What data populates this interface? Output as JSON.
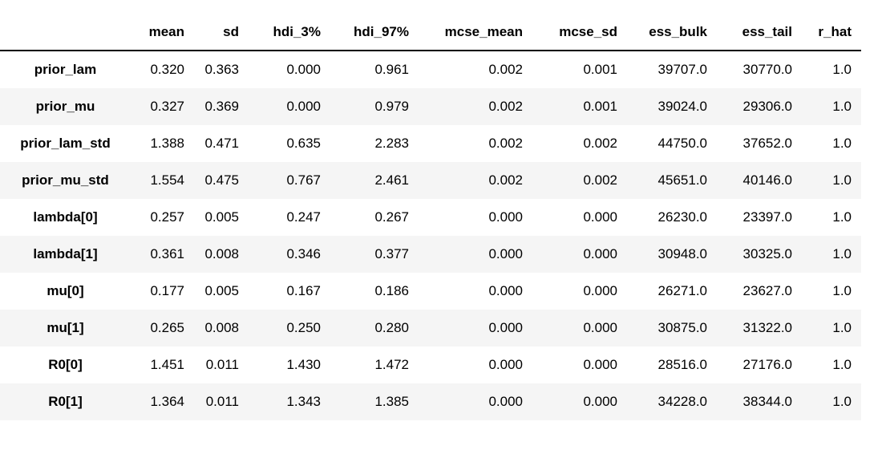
{
  "chart_data": {
    "type": "table",
    "description": "Bayesian posterior summary statistics table (ArviZ-style summary output)",
    "corner_header": "",
    "columns": [
      "mean",
      "sd",
      "hdi_3%",
      "hdi_97%",
      "mcse_mean",
      "mcse_sd",
      "ess_bulk",
      "ess_tail",
      "r_hat"
    ],
    "rows": [
      {
        "label": "prior_lam",
        "values": [
          "0.320",
          "0.363",
          "0.000",
          "0.961",
          "0.002",
          "0.001",
          "39707.0",
          "30770.0",
          "1.0"
        ]
      },
      {
        "label": "prior_mu",
        "values": [
          "0.327",
          "0.369",
          "0.000",
          "0.979",
          "0.002",
          "0.001",
          "39024.0",
          "29306.0",
          "1.0"
        ]
      },
      {
        "label": "prior_lam_std",
        "values": [
          "1.388",
          "0.471",
          "0.635",
          "2.283",
          "0.002",
          "0.002",
          "44750.0",
          "37652.0",
          "1.0"
        ]
      },
      {
        "label": "prior_mu_std",
        "values": [
          "1.554",
          "0.475",
          "0.767",
          "2.461",
          "0.002",
          "0.002",
          "45651.0",
          "40146.0",
          "1.0"
        ]
      },
      {
        "label": "lambda[0]",
        "values": [
          "0.257",
          "0.005",
          "0.247",
          "0.267",
          "0.000",
          "0.000",
          "26230.0",
          "23397.0",
          "1.0"
        ]
      },
      {
        "label": "lambda[1]",
        "values": [
          "0.361",
          "0.008",
          "0.346",
          "0.377",
          "0.000",
          "0.000",
          "30948.0",
          "30325.0",
          "1.0"
        ]
      },
      {
        "label": "mu[0]",
        "values": [
          "0.177",
          "0.005",
          "0.167",
          "0.186",
          "0.000",
          "0.000",
          "26271.0",
          "23627.0",
          "1.0"
        ]
      },
      {
        "label": "mu[1]",
        "values": [
          "0.265",
          "0.008",
          "0.250",
          "0.280",
          "0.000",
          "0.000",
          "30875.0",
          "31322.0",
          "1.0"
        ]
      },
      {
        "label": "R0[0]",
        "values": [
          "1.451",
          "0.011",
          "1.430",
          "1.472",
          "0.000",
          "0.000",
          "28516.0",
          "27176.0",
          "1.0"
        ]
      },
      {
        "label": "R0[1]",
        "values": [
          "1.364",
          "0.011",
          "1.343",
          "1.385",
          "0.000",
          "0.000",
          "34228.0",
          "38344.0",
          "1.0"
        ]
      }
    ],
    "layout": {
      "grid": false,
      "row_striping": "even rows shaded",
      "header_rule": "solid line under header row only"
    },
    "colors": {
      "text": "#000000",
      "background": "#ffffff",
      "row_stripe": "#f5f5f5",
      "header_border": "#000000"
    }
  }
}
